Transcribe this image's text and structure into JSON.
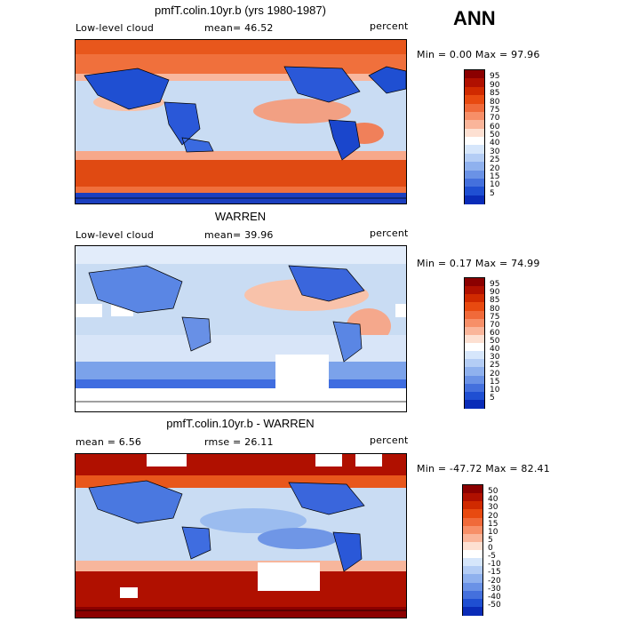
{
  "season": "ANN",
  "panels": [
    {
      "title": "pmfT.colin.10yr.b (yrs 1980-1987)",
      "left_label": "Low-level cloud",
      "mid_label": "mean=  46.52",
      "units": "percent",
      "minmax": "Min =   0.00 Max =  97.96"
    },
    {
      "title": "WARREN",
      "left_label": "Low-level cloud",
      "mid_label": "mean=  39.96",
      "units": "percent",
      "minmax": "Min =   0.17 Max =  74.99"
    },
    {
      "title": "pmfT.colin.10yr.b - WARREN",
      "left_label": "mean =   6.56",
      "mid_label": "rmse =  26.11",
      "units": "percent",
      "minmax": "Min = -47.72 Max =  82.41"
    }
  ],
  "colorbar_abs": {
    "labels": [
      "95",
      "90",
      "85",
      "80",
      "75",
      "70",
      "60",
      "50",
      "40",
      "30",
      "25",
      "20",
      "15",
      "10",
      "5"
    ],
    "colors": [
      "#8b0000",
      "#b01000",
      "#d02a00",
      "#e84a10",
      "#f06a3a",
      "#f78f68",
      "#fab59a",
      "#fde0d2",
      "#ffffff",
      "#d6e6fb",
      "#b4cdf5",
      "#8fb1ee",
      "#6a92e6",
      "#4470dd",
      "#1f4fd2",
      "#0a2cb8"
    ]
  },
  "colorbar_diff": {
    "labels": [
      "50",
      "40",
      "30",
      "20",
      "15",
      "10",
      "5",
      "0",
      "-5",
      "-10",
      "-15",
      "-20",
      "-30",
      "-40",
      "-50"
    ],
    "colors": [
      "#8b0000",
      "#b01000",
      "#d02a00",
      "#e84a10",
      "#f06a3a",
      "#f78f68",
      "#fab59a",
      "#fde0d2",
      "#ffffff",
      "#d6e6fb",
      "#b4cdf5",
      "#8fb1ee",
      "#6a92e6",
      "#4470dd",
      "#1f4fd2",
      "#0a2cb8"
    ]
  }
}
